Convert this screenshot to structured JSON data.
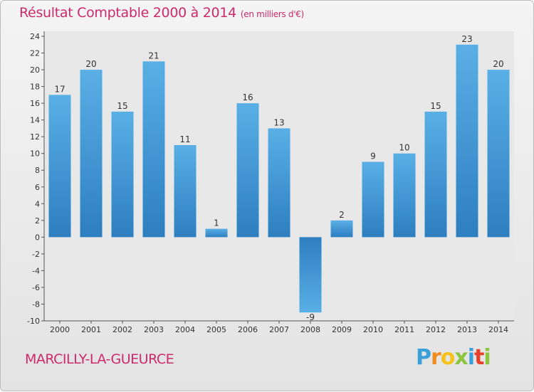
{
  "header": {
    "title": "Résultat Comptable 2000 à 2014",
    "unit": "(en milliers d'€)"
  },
  "footer": {
    "commune": "MARCILLY-LA-GUEURCE",
    "logo_letters": [
      "P",
      "r",
      "o",
      "x",
      "i",
      "t",
      "i"
    ]
  },
  "colors": {
    "title": "#cc2a6a",
    "bar_light": "#5aafe6",
    "bar_dark": "#2d7fc0"
  },
  "chart_data": {
    "type": "bar",
    "title": "Résultat Comptable 2000 à 2014",
    "xlabel": "",
    "ylabel": "",
    "categories": [
      "2000",
      "2001",
      "2002",
      "2003",
      "2004",
      "2005",
      "2006",
      "2007",
      "2008",
      "2009",
      "2010",
      "2011",
      "2012",
      "2013",
      "2014"
    ],
    "values": [
      17,
      20,
      15,
      21,
      11,
      1,
      16,
      13,
      -9,
      2,
      9,
      10,
      15,
      23,
      20
    ],
    "ylim": [
      -10,
      24
    ],
    "yticks": [
      -10,
      -8,
      -6,
      -4,
      -2,
      0,
      2,
      4,
      6,
      8,
      10,
      12,
      14,
      16,
      18,
      20,
      22,
      24
    ],
    "grid": false
  }
}
